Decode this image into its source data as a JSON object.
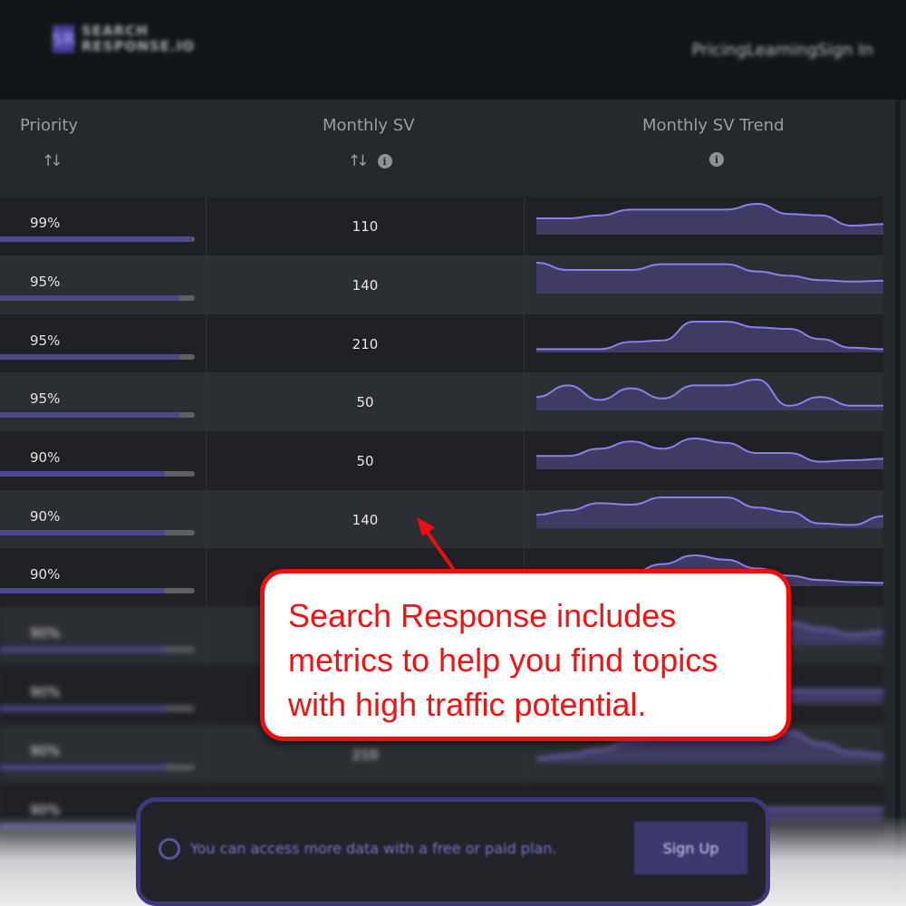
{
  "header": {
    "logo_mark": "SR",
    "logo_line1": "SEARCH",
    "logo_line2": "RESPONSE.IO",
    "nav": [
      "Pricing",
      "Learning",
      "Sign In"
    ]
  },
  "table": {
    "columns": [
      {
        "label": "Priority",
        "sortable": true,
        "info": false
      },
      {
        "label": "Monthly SV",
        "sortable": true,
        "info": true
      },
      {
        "label": "Monthly SV Trend",
        "sortable": false,
        "info": true
      }
    ],
    "rows": [
      {
        "priority": "99%",
        "priority_value": 99,
        "sv": "110",
        "trend": [
          50,
          50,
          60,
          80,
          80,
          80,
          80,
          100,
          65,
          60,
          25,
          30
        ]
      },
      {
        "priority": "95%",
        "priority_value": 95,
        "sv": "140",
        "trend": [
          100,
          75,
          75,
          75,
          95,
          95,
          95,
          70,
          55,
          40,
          35,
          38
        ]
      },
      {
        "priority": "95%",
        "priority_value": 95,
        "sv": "210",
        "trend": [
          5,
          5,
          5,
          30,
          35,
          100,
          100,
          80,
          75,
          40,
          10,
          5
        ]
      },
      {
        "priority": "95%",
        "priority_value": 95,
        "sv": "50",
        "trend": [
          40,
          80,
          30,
          70,
          35,
          80,
          80,
          100,
          10,
          40,
          10,
          10
        ]
      },
      {
        "priority": "90%",
        "priority_value": 90,
        "sv": "50",
        "trend": [
          40,
          40,
          65,
          90,
          65,
          100,
          85,
          50,
          50,
          20,
          25,
          30
        ]
      },
      {
        "priority": "90%",
        "priority_value": 90,
        "sv": "140",
        "trend": [
          40,
          55,
          80,
          75,
          100,
          100,
          100,
          65,
          50,
          10,
          5,
          35
        ]
      },
      {
        "priority": "90%",
        "priority_value": 90,
        "sv": "",
        "trend": [
          5,
          10,
          20,
          40,
          70,
          100,
          85,
          55,
          30,
          15,
          8,
          5
        ]
      },
      {
        "priority": "90%",
        "priority_value": 90,
        "sv": "",
        "trend": [
          40,
          40,
          40,
          40,
          40,
          40,
          40,
          60,
          70,
          50,
          30,
          40
        ]
      },
      {
        "priority": "90%",
        "priority_value": 90,
        "sv": "",
        "trend": [
          40,
          40,
          40,
          40,
          40,
          40,
          40,
          40,
          40,
          40,
          40,
          40
        ]
      },
      {
        "priority": "90%",
        "priority_value": 90,
        "sv": "210",
        "trend": [
          10,
          20,
          40,
          70,
          80,
          80,
          80,
          80,
          100,
          60,
          30,
          20
        ]
      },
      {
        "priority": "90%",
        "priority_value": 90,
        "sv": "",
        "trend": [
          40,
          40,
          40,
          40,
          40,
          40,
          40,
          40,
          40,
          40,
          40,
          40
        ]
      }
    ]
  },
  "banner": {
    "text": "You can access more data with a free or paid plan.",
    "button": "Sign Up"
  },
  "callout": {
    "text": "Search Response includes metrics to help you find topics with high traffic potential."
  },
  "colors": {
    "accent": "#8b7ff0",
    "bar_fill": "#4d4790",
    "callout_red": "#f00d0d"
  }
}
